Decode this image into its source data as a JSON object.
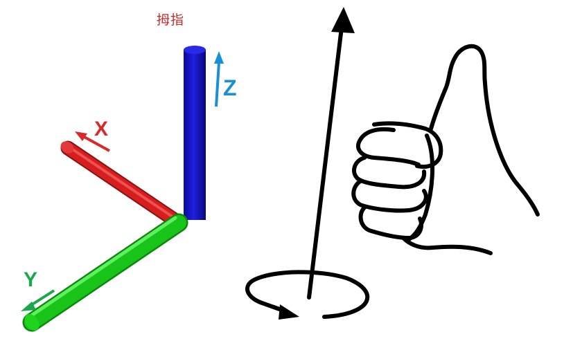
{
  "title": "拇指",
  "axes": {
    "x": {
      "label": "X",
      "color": "#d8292b"
    },
    "y": {
      "label": "Y",
      "color": "#1aa84a"
    },
    "z": {
      "label": "Z",
      "color": "#1a8fd6"
    }
  },
  "colors": {
    "title": "#c22b2b",
    "x_bar": "#d51f1f",
    "y_bar": "#19c419",
    "z_bar": "#1515d0",
    "ink": "#000000"
  },
  "icons": {
    "rotation_arrow": "up-arrow-icon",
    "rotation": "circular-arrow-icon",
    "hand": "thumbs-up-hand-icon"
  }
}
